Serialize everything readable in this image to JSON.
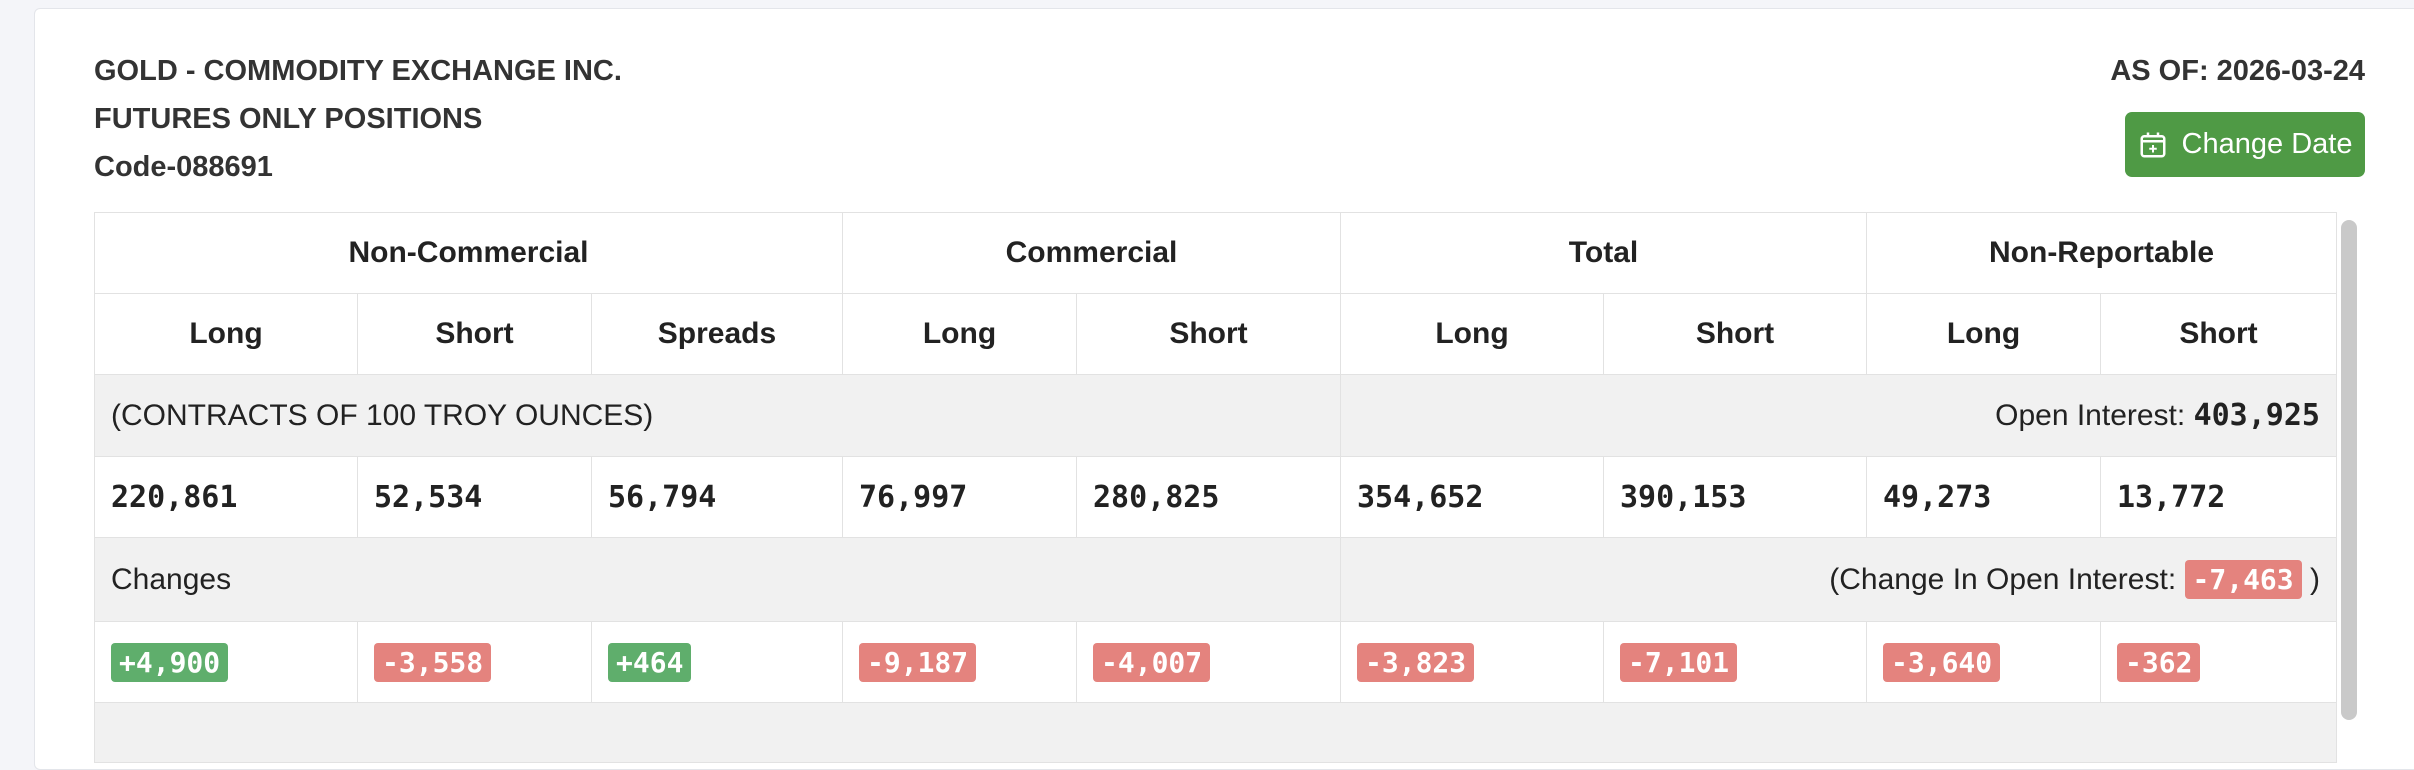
{
  "header": {
    "title": "GOLD - COMMODITY EXCHANGE INC.",
    "subtitle": "FUTURES ONLY POSITIONS",
    "code": "Code-088691",
    "as_of": "AS OF: 2026-03-24",
    "button": "Change Date"
  },
  "table": {
    "groups": [
      "Non-Commercial",
      "Commercial",
      "Total",
      "Non-Reportable"
    ],
    "columns": [
      "Long",
      "Short",
      "Spreads",
      "Long",
      "Short",
      "Long",
      "Short",
      "Long",
      "Short"
    ],
    "units": "(CONTRACTS OF 100 TROY OUNCES)",
    "open_interest_label": "Open Interest:",
    "open_interest": "403,925",
    "positions": [
      "220,861",
      "52,534",
      "56,794",
      "76,997",
      "280,825",
      "354,652",
      "390,153",
      "49,273",
      "13,772"
    ],
    "changes_label": "Changes",
    "change_oi_label": "(Change In Open Interest:",
    "change_oi": "-7,463",
    "change_oi_close": ")",
    "changes": [
      "+4,900",
      "-3,558",
      "+464",
      "-9,187",
      "-4,007",
      "-3,823",
      "-7,101",
      "-3,640",
      "-362"
    ]
  }
}
